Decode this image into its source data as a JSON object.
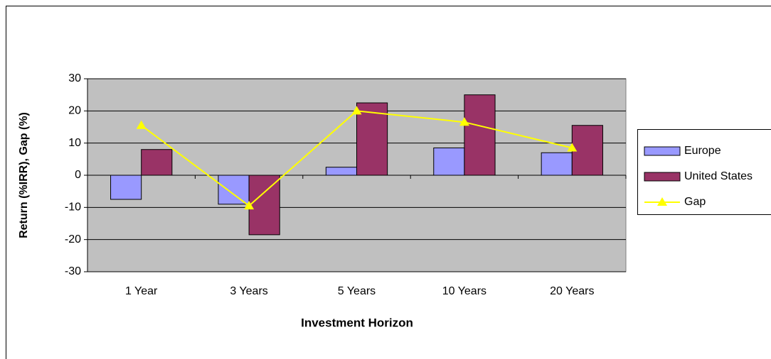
{
  "chart_data": {
    "type": "bar",
    "categories": [
      "1 Year",
      "3 Years",
      "5 Years",
      "10 Years",
      "20 Years"
    ],
    "series": [
      {
        "name": "Europe",
        "color": "#9999ff",
        "values": [
          -7.5,
          -9,
          2.5,
          8.5,
          7
        ]
      },
      {
        "name": "United States",
        "color": "#993366",
        "values": [
          8,
          -18.5,
          22.5,
          25,
          15.5
        ]
      },
      {
        "name": "Gap",
        "type": "line",
        "color": "#ffff00",
        "values": [
          15.5,
          -9.5,
          20,
          16.5,
          8.5
        ]
      }
    ],
    "x_label": "Investment Horizon",
    "y_label": "Return (%IRR), Gap (%)",
    "ylim": [
      -30,
      30
    ],
    "yticks": [
      -30,
      -20,
      -10,
      0,
      10,
      20,
      30
    ],
    "grid": true,
    "legend": "right"
  }
}
